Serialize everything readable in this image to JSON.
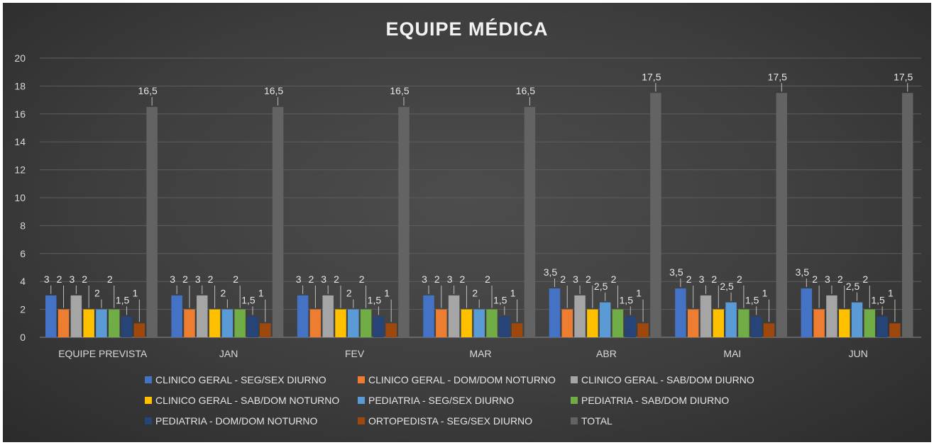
{
  "chart_data": {
    "type": "bar",
    "title": "EQUIPE MÉDICA",
    "xlabel": "",
    "ylabel": "",
    "ylim": [
      0,
      20
    ],
    "yticks": [
      "0",
      "2",
      "4",
      "6",
      "8",
      "10",
      "12",
      "14",
      "16",
      "18",
      "20"
    ],
    "grid": true,
    "legend_position": "bottom",
    "categories": [
      "EQUIPE PREVISTA",
      "JAN",
      "FEV",
      "MAR",
      "ABR",
      "MAI",
      "JUN"
    ],
    "series": [
      {
        "name": "CLINICO GERAL - SEG/SEX DIURNO",
        "color": "#4472c4",
        "values": [
          3,
          3,
          3,
          3,
          3.5,
          3.5,
          3.5
        ],
        "labels": [
          "3",
          "3",
          "3",
          "3",
          "3,5",
          "3,5",
          "3,5"
        ]
      },
      {
        "name": "CLINICO GERAL - DOM/DOM NOTURNO",
        "color": "#ed7d31",
        "values": [
          2,
          2,
          2,
          2,
          2,
          2,
          2
        ],
        "labels": [
          "2",
          "2",
          "2",
          "2",
          "2",
          "2",
          "2"
        ]
      },
      {
        "name": "CLINICO GERAL - SAB/DOM DIURNO",
        "color": "#a5a5a5",
        "values": [
          3,
          3,
          3,
          3,
          3,
          3,
          3
        ],
        "labels": [
          "3",
          "3",
          "3",
          "3",
          "3",
          "3",
          "3"
        ]
      },
      {
        "name": "CLINICO GERAL - SAB/DOM NOTURNO",
        "color": "#ffc000",
        "values": [
          2,
          2,
          2,
          2,
          2,
          2,
          2
        ],
        "labels": [
          "2",
          "2",
          "2",
          "2",
          "2",
          "2",
          "2"
        ]
      },
      {
        "name": "PEDIATRIA - SEG/SEX DIURNO",
        "color": "#5b9bd5",
        "values": [
          2,
          2,
          2,
          2,
          2.5,
          2.5,
          2.5
        ],
        "labels": [
          "2",
          "2",
          "2",
          "2",
          "2,5",
          "2,5",
          "2,5"
        ]
      },
      {
        "name": "PEDIATRIA - SAB/DOM DIURNO",
        "color": "#70ad47",
        "values": [
          2,
          2,
          2,
          2,
          2,
          2,
          2
        ],
        "labels": [
          "2",
          "2",
          "2",
          "2",
          "2",
          "2",
          "2"
        ]
      },
      {
        "name": "PEDIATRIA - DOM/DOM NOTURNO",
        "color": "#264478",
        "values": [
          1.5,
          1.5,
          1.5,
          1.5,
          1.5,
          1.5,
          1.5
        ],
        "labels": [
          "1,5",
          "1,5",
          "1,5",
          "1,5",
          "1,5",
          "1,5",
          "1,5"
        ]
      },
      {
        "name": "ORTOPEDISTA - SEG/SEX DIURNO",
        "color": "#9e480e",
        "values": [
          1,
          1,
          1,
          1,
          1,
          1,
          1
        ],
        "labels": [
          "1",
          "1",
          "1",
          "1",
          "1",
          "1",
          "1"
        ]
      },
      {
        "name": "TOTAL",
        "color": "#636363",
        "values": [
          16.5,
          16.5,
          16.5,
          16.5,
          17.5,
          17.5,
          17.5
        ],
        "labels": [
          "16,5",
          "16,5",
          "16,5",
          "16,5",
          "17,5",
          "17,5",
          "17,5"
        ]
      }
    ]
  }
}
